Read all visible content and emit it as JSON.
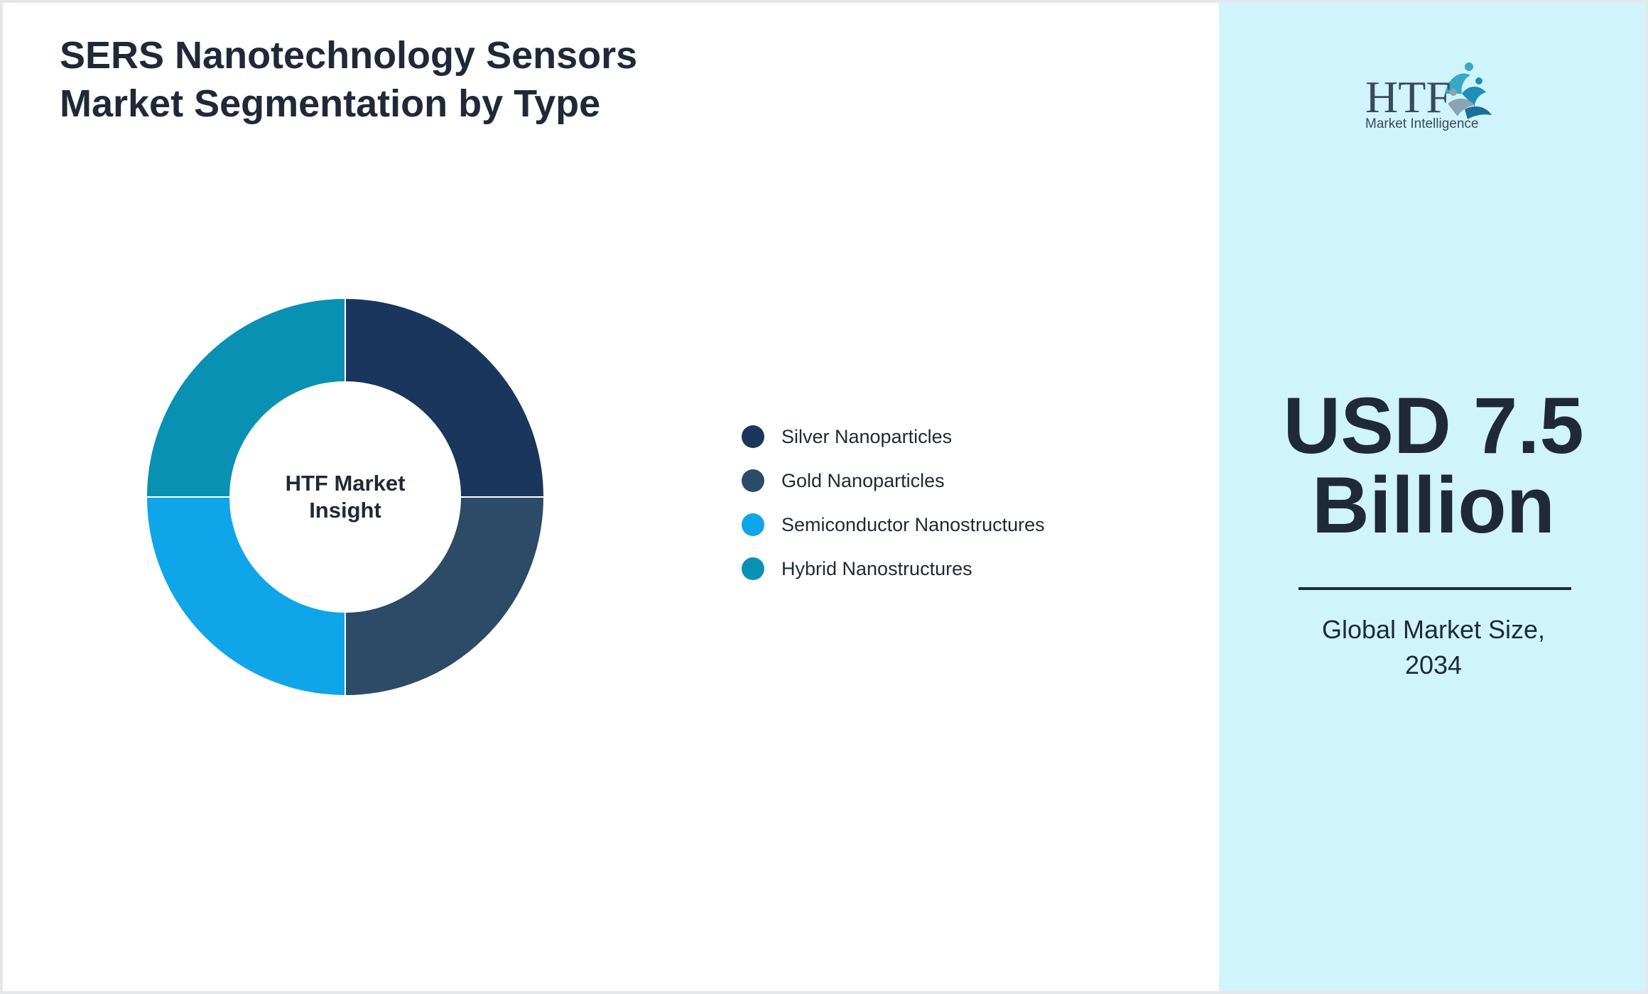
{
  "title": {
    "line1": "SERS Nanotechnology Sensors",
    "line2": "Market Segmentation by Type"
  },
  "chart_data": {
    "type": "pie",
    "variant": "donut",
    "categories": [
      "Silver Nanoparticles",
      "Gold Nanoparticles",
      "Semiconductor Nanostructures",
      "Hybrid Nanostructures"
    ],
    "values": [
      25,
      25,
      25,
      25
    ],
    "colors": [
      "#1b365d",
      "#2d4a66",
      "#0ea5e9",
      "#0891b2"
    ],
    "center_label": {
      "line1": "HTF Market",
      "line2": "Insight"
    },
    "legend_position": "right"
  },
  "logo": {
    "brand": "HTF",
    "tagline": "Market Intelligence"
  },
  "market_size": {
    "value_line1": "USD 7.5",
    "value_line2": "Billion",
    "caption_line1": "Global Market Size,",
    "caption_line2": "2034"
  },
  "colors": {
    "right_panel_bg": "#cff4fc",
    "text": "#1f2937"
  }
}
